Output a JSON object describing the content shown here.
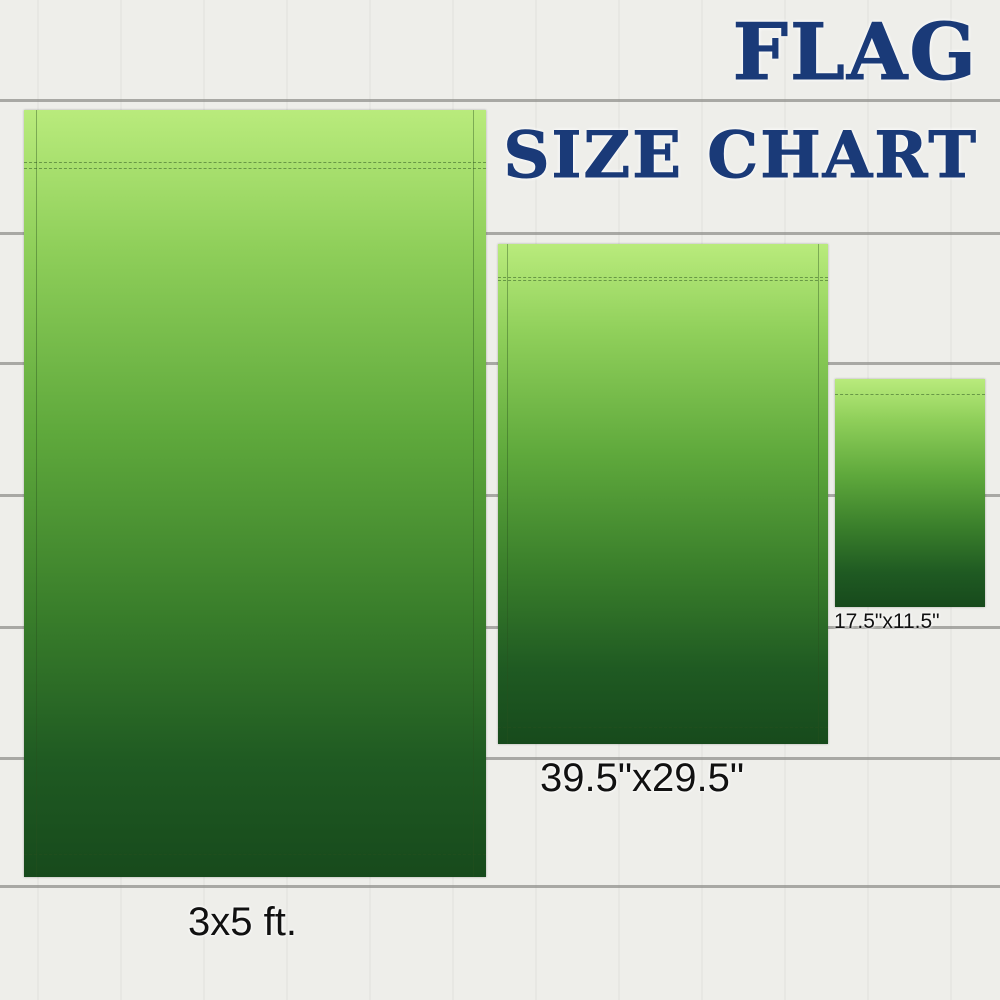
{
  "title": {
    "line1": "FLAG",
    "line2": "SIZE CHART",
    "color": "#1a3a78"
  },
  "flags": [
    {
      "label": "3x5 ft."
    },
    {
      "label": "39.5\"x29.5\""
    },
    {
      "label": "17.5\"x11.5\""
    }
  ],
  "colors": {
    "flag_top": "#b9eb7c",
    "flag_bottom": "#174a1c",
    "background": "#eeeeea"
  }
}
